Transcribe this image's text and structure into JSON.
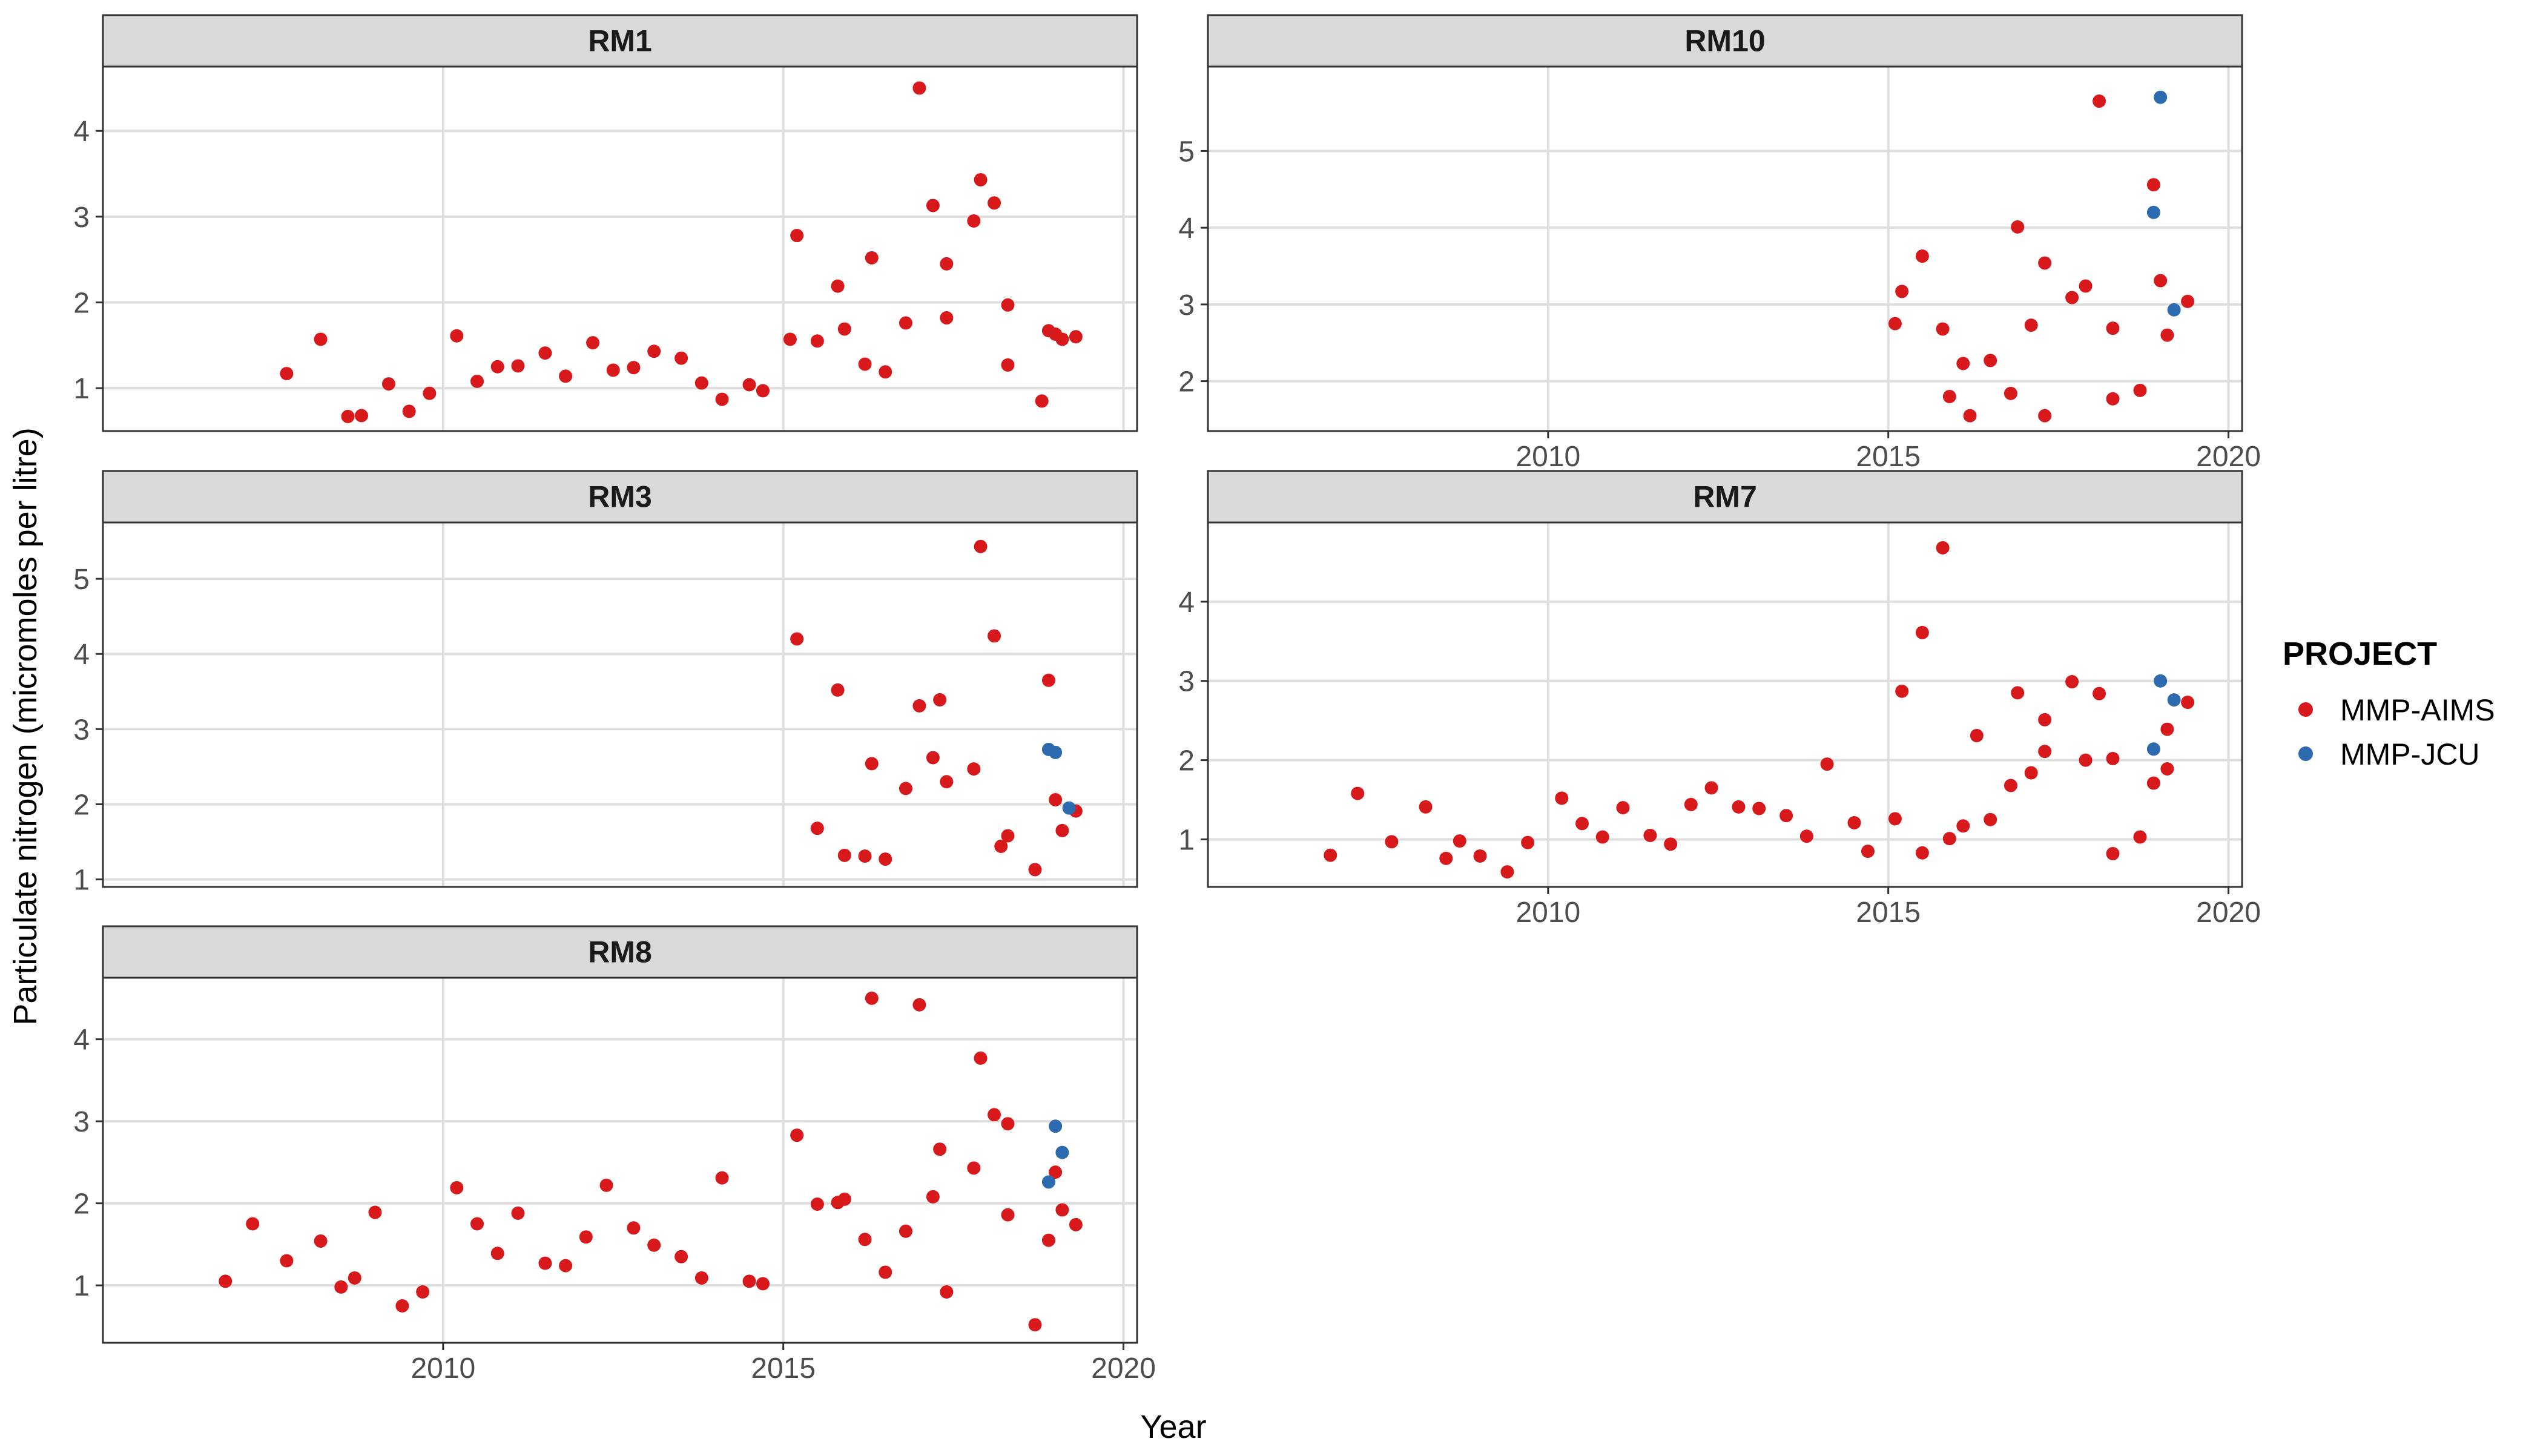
{
  "chart_data": {
    "type": "scatter",
    "facet_by": "site",
    "xlabel": "Year",
    "ylabel": "Particulate nitrogen (micromoles per litre)",
    "xlim": [
      2005,
      2020.2
    ],
    "x_ticks": [
      2010,
      2015,
      2020
    ],
    "grid": true,
    "legend": {
      "title": "PROJECT",
      "position": "right",
      "entries": [
        {
          "label": "MMP-AIMS",
          "color": "#d7191c"
        },
        {
          "label": "MMP-JCU",
          "color": "#2c6bb0"
        }
      ]
    },
    "panels": [
      {
        "name": "RM1",
        "ylim": [
          0.5,
          4.75
        ],
        "y_ticks": [
          1,
          2,
          3,
          4
        ],
        "series": [
          {
            "name": "MMP-AIMS",
            "points": [
              [
                2007.7,
                1.17
              ],
              [
                2008.2,
                1.57
              ],
              [
                2008.6,
                0.67
              ],
              [
                2008.8,
                0.68
              ],
              [
                2009.2,
                1.05
              ],
              [
                2009.5,
                0.73
              ],
              [
                2009.8,
                0.94
              ],
              [
                2010.2,
                1.61
              ],
              [
                2010.5,
                1.08
              ],
              [
                2010.8,
                1.25
              ],
              [
                2011.1,
                1.26
              ],
              [
                2011.5,
                1.41
              ],
              [
                2011.8,
                1.14
              ],
              [
                2012.2,
                1.53
              ],
              [
                2012.5,
                1.21
              ],
              [
                2012.8,
                1.24
              ],
              [
                2013.1,
                1.43
              ],
              [
                2013.5,
                1.35
              ],
              [
                2013.8,
                1.06
              ],
              [
                2014.1,
                0.87
              ],
              [
                2014.5,
                1.04
              ],
              [
                2014.7,
                0.97
              ],
              [
                2015.1,
                1.57
              ],
              [
                2015.2,
                2.78
              ],
              [
                2015.5,
                1.55
              ],
              [
                2015.8,
                2.19
              ],
              [
                2015.9,
                1.69
              ],
              [
                2016.2,
                1.28
              ],
              [
                2016.3,
                2.52
              ],
              [
                2016.5,
                1.19
              ],
              [
                2016.8,
                1.76
              ],
              [
                2017.0,
                4.5
              ],
              [
                2017.2,
                3.13
              ],
              [
                2017.4,
                2.45
              ],
              [
                2017.4,
                1.82
              ],
              [
                2017.8,
                2.95
              ],
              [
                2017.9,
                3.43
              ],
              [
                2018.1,
                3.16
              ],
              [
                2018.3,
                1.27
              ],
              [
                2018.3,
                1.97
              ],
              [
                2018.8,
                0.85
              ],
              [
                2018.9,
                1.67
              ],
              [
                2019.0,
                1.63
              ],
              [
                2019.1,
                1.57
              ],
              [
                2019.3,
                1.6
              ]
            ]
          },
          {
            "name": "MMP-JCU",
            "points": []
          }
        ]
      },
      {
        "name": "RM10",
        "ylim": [
          1.35,
          6.1
        ],
        "y_ticks": [
          2,
          3,
          4,
          5
        ],
        "series": [
          {
            "name": "MMP-AIMS",
            "points": [
              [
                2015.1,
                2.75
              ],
              [
                2015.2,
                3.17
              ],
              [
                2015.5,
                3.63
              ],
              [
                2015.8,
                2.68
              ],
              [
                2015.9,
                1.8
              ],
              [
                2016.1,
                2.23
              ],
              [
                2016.2,
                1.55
              ],
              [
                2016.5,
                2.27
              ],
              [
                2016.8,
                1.84
              ],
              [
                2016.9,
                4.01
              ],
              [
                2017.1,
                2.73
              ],
              [
                2017.3,
                3.54
              ],
              [
                2017.3,
                1.55
              ],
              [
                2017.7,
                3.09
              ],
              [
                2017.9,
                3.24
              ],
              [
                2018.1,
                5.65
              ],
              [
                2018.3,
                1.77
              ],
              [
                2018.3,
                2.69
              ],
              [
                2018.7,
                1.88
              ],
              [
                2018.9,
                4.56
              ],
              [
                2019.0,
                3.31
              ],
              [
                2019.1,
                2.6
              ],
              [
                2019.4,
                3.04
              ]
            ]
          },
          {
            "name": "MMP-JCU",
            "points": [
              [
                2018.9,
                4.2
              ],
              [
                2019.0,
                5.7
              ],
              [
                2019.2,
                2.93
              ]
            ]
          }
        ]
      },
      {
        "name": "RM3",
        "ylim": [
          0.9,
          5.75
        ],
        "y_ticks": [
          1,
          2,
          3,
          4,
          5
        ],
        "series": [
          {
            "name": "MMP-AIMS",
            "points": [
              [
                2015.2,
                4.2
              ],
              [
                2015.5,
                1.68
              ],
              [
                2015.8,
                3.52
              ],
              [
                2015.9,
                1.32
              ],
              [
                2016.2,
                1.31
              ],
              [
                2016.3,
                2.54
              ],
              [
                2016.5,
                1.27
              ],
              [
                2016.8,
                2.21
              ],
              [
                2017.0,
                3.31
              ],
              [
                2017.2,
                2.62
              ],
              [
                2017.3,
                3.39
              ],
              [
                2017.4,
                2.3
              ],
              [
                2017.8,
                2.47
              ],
              [
                2017.9,
                5.43
              ],
              [
                2018.1,
                4.24
              ],
              [
                2018.2,
                1.44
              ],
              [
                2018.3,
                1.58
              ],
              [
                2018.7,
                1.13
              ],
              [
                2018.9,
                3.65
              ],
              [
                2019.0,
                2.06
              ],
              [
                2019.1,
                1.65
              ],
              [
                2019.3,
                1.91
              ]
            ]
          },
          {
            "name": "MMP-JCU",
            "points": [
              [
                2018.9,
                2.73
              ],
              [
                2019.0,
                2.69
              ],
              [
                2019.2,
                1.95
              ]
            ]
          }
        ]
      },
      {
        "name": "RM7",
        "ylim": [
          0.4,
          5.0
        ],
        "y_ticks": [
          1,
          2,
          3,
          4
        ],
        "series": [
          {
            "name": "MMP-AIMS",
            "points": [
              [
                2006.8,
                0.8
              ],
              [
                2007.2,
                1.58
              ],
              [
                2007.7,
                0.97
              ],
              [
                2008.2,
                1.41
              ],
              [
                2008.5,
                0.76
              ],
              [
                2008.7,
                0.98
              ],
              [
                2009.0,
                0.79
              ],
              [
                2009.4,
                0.59
              ],
              [
                2009.7,
                0.96
              ],
              [
                2010.2,
                1.52
              ],
              [
                2010.5,
                1.2
              ],
              [
                2010.8,
                1.03
              ],
              [
                2011.1,
                1.4
              ],
              [
                2011.5,
                1.05
              ],
              [
                2011.8,
                0.94
              ],
              [
                2012.1,
                1.44
              ],
              [
                2012.4,
                1.65
              ],
              [
                2012.8,
                1.41
              ],
              [
                2013.1,
                1.39
              ],
              [
                2013.5,
                1.3
              ],
              [
                2013.8,
                1.04
              ],
              [
                2014.1,
                1.95
              ],
              [
                2014.5,
                1.21
              ],
              [
                2014.7,
                0.85
              ],
              [
                2015.1,
                1.26
              ],
              [
                2015.2,
                2.87
              ],
              [
                2015.5,
                0.83
              ],
              [
                2015.5,
                3.61
              ],
              [
                2015.8,
                4.68
              ],
              [
                2015.9,
                1.01
              ],
              [
                2016.1,
                1.17
              ],
              [
                2016.3,
                2.31
              ],
              [
                2016.5,
                1.25
              ],
              [
                2016.8,
                1.68
              ],
              [
                2016.9,
                2.85
              ],
              [
                2017.1,
                1.84
              ],
              [
                2017.3,
                2.51
              ],
              [
                2017.3,
                2.11
              ],
              [
                2017.7,
                2.99
              ],
              [
                2017.9,
                2.0
              ],
              [
                2018.1,
                2.84
              ],
              [
                2018.3,
                2.02
              ],
              [
                2018.3,
                0.82
              ],
              [
                2018.7,
                1.03
              ],
              [
                2018.9,
                1.71
              ],
              [
                2019.1,
                2.39
              ],
              [
                2019.1,
                1.89
              ],
              [
                2019.4,
                2.73
              ]
            ]
          },
          {
            "name": "MMP-JCU",
            "points": [
              [
                2018.9,
                2.14
              ],
              [
                2019.0,
                3.0
              ],
              [
                2019.2,
                2.76
              ]
            ]
          }
        ]
      },
      {
        "name": "RM8",
        "ylim": [
          0.3,
          4.75
        ],
        "y_ticks": [
          1,
          2,
          3,
          4
        ],
        "series": [
          {
            "name": "MMP-AIMS",
            "points": [
              [
                2006.8,
                1.05
              ],
              [
                2007.2,
                1.75
              ],
              [
                2007.7,
                1.3
              ],
              [
                2008.2,
                1.54
              ],
              [
                2008.5,
                0.98
              ],
              [
                2008.7,
                1.09
              ],
              [
                2009.0,
                1.89
              ],
              [
                2009.4,
                0.75
              ],
              [
                2009.7,
                0.92
              ],
              [
                2010.2,
                2.19
              ],
              [
                2010.5,
                1.75
              ],
              [
                2010.8,
                1.39
              ],
              [
                2011.1,
                1.88
              ],
              [
                2011.5,
                1.27
              ],
              [
                2011.8,
                1.24
              ],
              [
                2012.1,
                1.59
              ],
              [
                2012.4,
                2.22
              ],
              [
                2012.8,
                1.7
              ],
              [
                2013.1,
                1.49
              ],
              [
                2013.5,
                1.35
              ],
              [
                2013.8,
                1.09
              ],
              [
                2014.1,
                2.31
              ],
              [
                2014.5,
                1.05
              ],
              [
                2014.7,
                1.02
              ],
              [
                2015.2,
                2.83
              ],
              [
                2015.5,
                1.99
              ],
              [
                2015.8,
                2.01
              ],
              [
                2015.9,
                2.05
              ],
              [
                2016.2,
                1.56
              ],
              [
                2016.3,
                4.5
              ],
              [
                2016.5,
                1.16
              ],
              [
                2016.8,
                1.66
              ],
              [
                2017.0,
                4.42
              ],
              [
                2017.2,
                2.08
              ],
              [
                2017.3,
                2.66
              ],
              [
                2017.4,
                0.92
              ],
              [
                2017.8,
                2.43
              ],
              [
                2017.9,
                3.77
              ],
              [
                2018.1,
                3.08
              ],
              [
                2018.3,
                1.86
              ],
              [
                2018.3,
                2.97
              ],
              [
                2018.7,
                0.52
              ],
              [
                2018.9,
                1.55
              ],
              [
                2019.0,
                2.38
              ],
              [
                2019.1,
                1.92
              ],
              [
                2019.3,
                1.74
              ]
            ]
          },
          {
            "name": "MMP-JCU",
            "points": [
              [
                2018.9,
                2.26
              ],
              [
                2019.0,
                2.94
              ],
              [
                2019.1,
                2.62
              ]
            ]
          }
        ]
      }
    ]
  }
}
